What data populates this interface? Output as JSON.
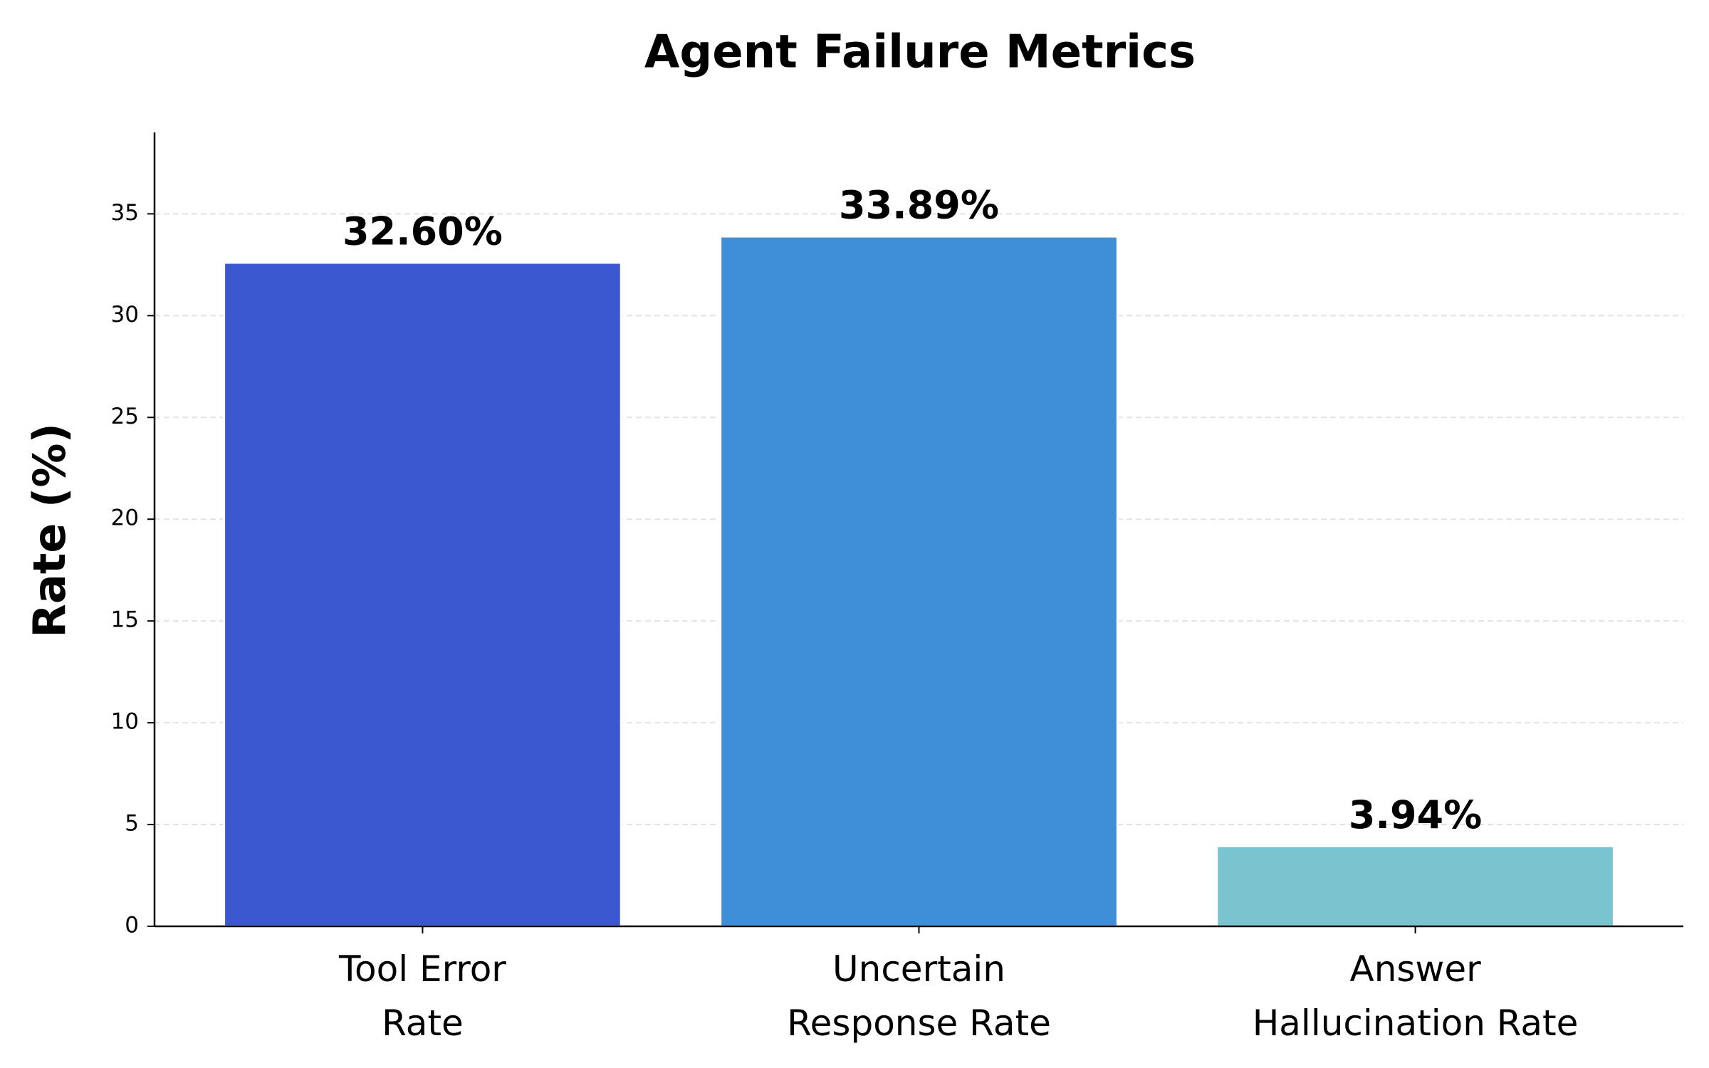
{
  "chart_data": {
    "type": "bar",
    "title": "Agent Failure Metrics",
    "y_label": "Rate (%)",
    "categories": [
      "Tool Error\nRate",
      "Uncertain\nResponse Rate",
      "Answer\nHallucination Rate"
    ],
    "values": [
      32.6,
      33.89,
      3.94
    ],
    "value_labels": [
      "32.60%",
      "33.89%",
      "3.94%"
    ],
    "colors": [
      "#3b58d0",
      "#3e8ed8",
      "#7ac4d0"
    ],
    "ylim": [
      0,
      39
    ],
    "yticks": [
      0,
      5,
      10,
      15,
      20,
      25,
      30,
      35
    ],
    "grid": true
  }
}
